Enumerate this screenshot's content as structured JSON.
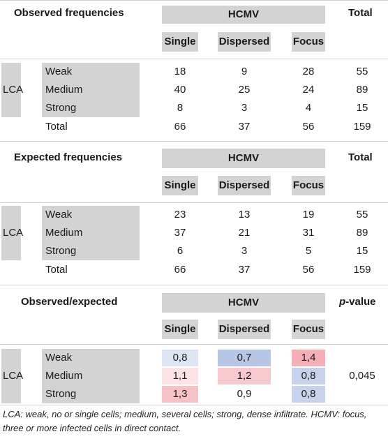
{
  "sections": [
    {
      "title": "Observed frequencies",
      "group_header": "HCMV",
      "total_header": "Total",
      "columns": [
        "Single",
        "Dispersed",
        "Focus"
      ],
      "row_group": "LCA",
      "rows": [
        {
          "label": "Weak",
          "values": [
            "18",
            "9",
            "28"
          ],
          "total": "55"
        },
        {
          "label": "Medium",
          "values": [
            "40",
            "25",
            "24"
          ],
          "total": "89"
        },
        {
          "label": "Strong",
          "values": [
            "8",
            "3",
            "4"
          ],
          "total": "15"
        }
      ],
      "total_row": {
        "label": "Total",
        "values": [
          "66",
          "37",
          "56"
        ],
        "total": "159"
      }
    },
    {
      "title": "Expected frequencies",
      "group_header": "HCMV",
      "total_header": "Total",
      "columns": [
        "Single",
        "Dispersed",
        "Focus"
      ],
      "row_group": "LCA",
      "rows": [
        {
          "label": "Weak",
          "values": [
            "23",
            "13",
            "19"
          ],
          "total": "55"
        },
        {
          "label": "Medium",
          "values": [
            "37",
            "21",
            "31"
          ],
          "total": "89"
        },
        {
          "label": "Strong",
          "values": [
            "6",
            "3",
            "5"
          ],
          "total": "15"
        }
      ],
      "total_row": {
        "label": "Total",
        "values": [
          "66",
          "37",
          "56"
        ],
        "total": "159"
      }
    },
    {
      "title": "Observed/expected",
      "group_header": "HCMV",
      "pvalue_header_italic": "p",
      "pvalue_header_rest": "-value",
      "columns": [
        "Single",
        "Dispersed",
        "Focus"
      ],
      "row_group": "LCA",
      "rows": [
        {
          "label": "Weak",
          "values": [
            "0,8",
            "0,7",
            "1,4"
          ],
          "colors": [
            "#dde4f3",
            "#b7c6e4",
            "#f5b0b7"
          ]
        },
        {
          "label": "Medium",
          "values": [
            "1,1",
            "1,2",
            "0,8"
          ],
          "colors": [
            "#fbe3e6",
            "#f7c8cd",
            "#c7d3ea"
          ]
        },
        {
          "label": "Strong",
          "values": [
            "1,3",
            "0,9",
            "0,8"
          ],
          "colors": [
            "#f6c1c7",
            "#ffffff",
            "#c7d3ea"
          ]
        }
      ],
      "pvalue": "0,045"
    }
  ],
  "caption": "LCA: weak, no or single cells; medium, several cells; strong, dense infiltrate. HCMV: focus, three or more infected cells in direct contact."
}
